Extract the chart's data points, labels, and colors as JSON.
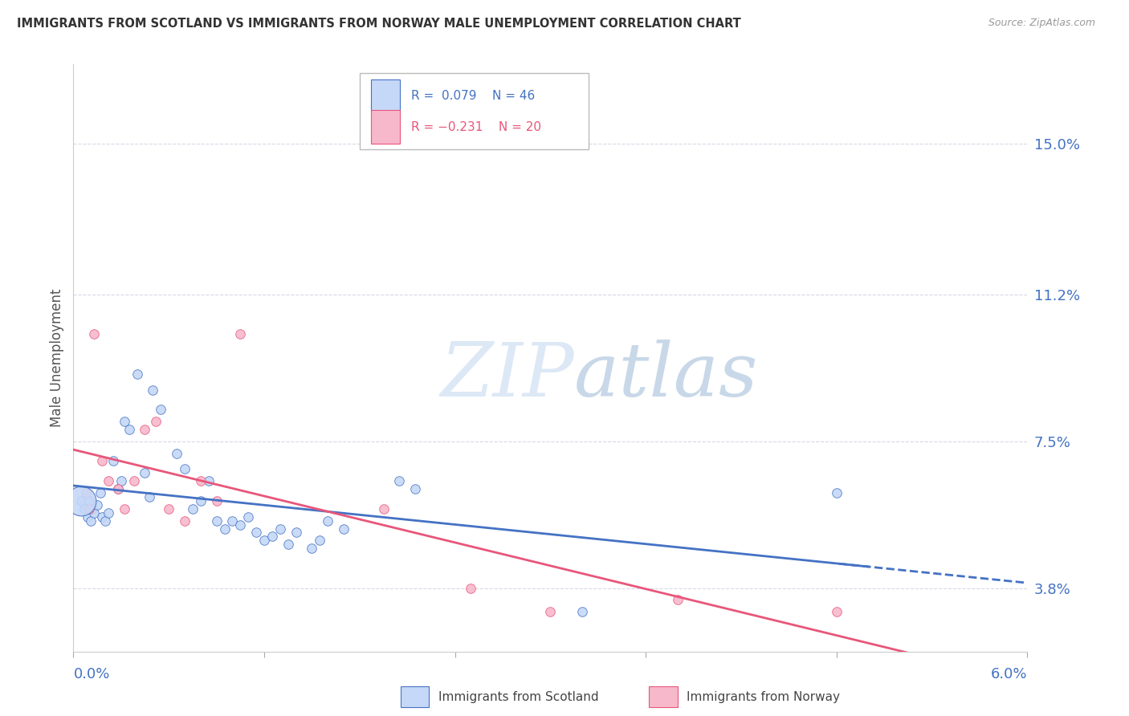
{
  "title": "IMMIGRANTS FROM SCOTLAND VS IMMIGRANTS FROM NORWAY MALE UNEMPLOYMENT CORRELATION CHART",
  "source": "Source: ZipAtlas.com",
  "ylabel": "Male Unemployment",
  "yticks": [
    3.8,
    7.5,
    11.2,
    15.0
  ],
  "ytick_labels": [
    "3.8%",
    "7.5%",
    "11.2%",
    "15.0%"
  ],
  "xlim": [
    0.0,
    6.0
  ],
  "ylim": [
    2.2,
    17.0
  ],
  "scotland_color": "#c5d8f7",
  "norway_color": "#f7b8cc",
  "scotland_R": 0.079,
  "scotland_N": 46,
  "norway_R": -0.231,
  "norway_N": 20,
  "trendline_color_scotland": "#4472c4",
  "trendline_color_norway": "#e8567a",
  "background_color": "#ffffff",
  "grid_color": "#d8d8e8",
  "watermark_zip": "ZIP",
  "watermark_atlas": "atlas",
  "scotland_points": [
    [
      0.05,
      6.0
    ],
    [
      0.07,
      5.8
    ],
    [
      0.09,
      5.6
    ],
    [
      0.1,
      6.0
    ],
    [
      0.11,
      5.5
    ],
    [
      0.12,
      5.8
    ],
    [
      0.13,
      5.7
    ],
    [
      0.15,
      5.9
    ],
    [
      0.17,
      6.2
    ],
    [
      0.18,
      5.6
    ],
    [
      0.2,
      5.5
    ],
    [
      0.22,
      5.7
    ],
    [
      0.25,
      7.0
    ],
    [
      0.28,
      6.3
    ],
    [
      0.3,
      6.5
    ],
    [
      0.32,
      8.0
    ],
    [
      0.35,
      7.8
    ],
    [
      0.4,
      9.2
    ],
    [
      0.45,
      6.7
    ],
    [
      0.48,
      6.1
    ],
    [
      0.5,
      8.8
    ],
    [
      0.55,
      8.3
    ],
    [
      0.65,
      7.2
    ],
    [
      0.7,
      6.8
    ],
    [
      0.75,
      5.8
    ],
    [
      0.8,
      6.0
    ],
    [
      0.85,
      6.5
    ],
    [
      0.9,
      5.5
    ],
    [
      0.95,
      5.3
    ],
    [
      1.0,
      5.5
    ],
    [
      1.05,
      5.4
    ],
    [
      1.1,
      5.6
    ],
    [
      1.15,
      5.2
    ],
    [
      1.2,
      5.0
    ],
    [
      1.25,
      5.1
    ],
    [
      1.3,
      5.3
    ],
    [
      1.35,
      4.9
    ],
    [
      1.4,
      5.2
    ],
    [
      1.5,
      4.8
    ],
    [
      1.55,
      5.0
    ],
    [
      1.6,
      5.5
    ],
    [
      1.7,
      5.3
    ],
    [
      2.05,
      6.5
    ],
    [
      2.15,
      6.3
    ],
    [
      3.2,
      3.2
    ],
    [
      4.8,
      6.2
    ]
  ],
  "scotland_large_bubble": [
    0.05,
    6.0
  ],
  "norway_points": [
    [
      0.08,
      6.2
    ],
    [
      0.1,
      5.8
    ],
    [
      0.13,
      10.2
    ],
    [
      0.18,
      7.0
    ],
    [
      0.22,
      6.5
    ],
    [
      0.28,
      6.3
    ],
    [
      0.32,
      5.8
    ],
    [
      0.38,
      6.5
    ],
    [
      0.45,
      7.8
    ],
    [
      0.52,
      8.0
    ],
    [
      0.6,
      5.8
    ],
    [
      0.7,
      5.5
    ],
    [
      0.8,
      6.5
    ],
    [
      0.9,
      6.0
    ],
    [
      1.05,
      10.2
    ],
    [
      1.95,
      5.8
    ],
    [
      2.5,
      3.8
    ],
    [
      3.0,
      3.2
    ],
    [
      3.8,
      3.5
    ],
    [
      4.8,
      3.2
    ]
  ]
}
